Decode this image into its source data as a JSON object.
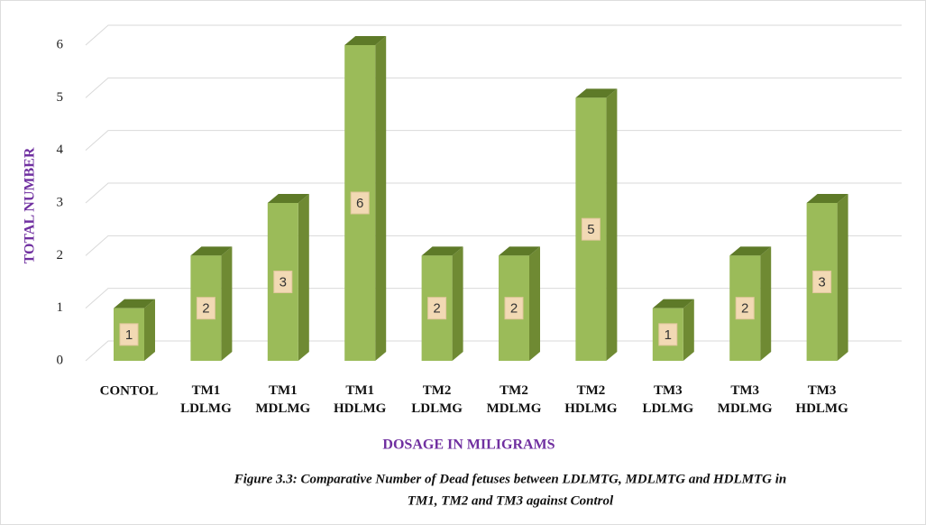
{
  "chart_data": {
    "type": "bar3d",
    "y_label": "TOTAL NUMBER",
    "x_label": "DOSAGE IN MILIGRAMS",
    "caption": [
      "Figure 3.3: Comparative Number of Dead fetuses between LDLMTG, MDLMTG and HDLMTG in",
      "TM1, TM2 and TM3 against Control"
    ],
    "categories": [
      "CONTOL",
      "TM1 LDLMG",
      "TM1 MDLMG",
      "TM1 HDLMG",
      "TM2 LDLMG",
      "TM2 MDLMG",
      "TM2 HDLMG",
      "TM3 LDLMG",
      "TM3 MDLMG",
      "TM3 HDLMG"
    ],
    "values": [
      1,
      2,
      3,
      6,
      2,
      2,
      5,
      1,
      2,
      3
    ],
    "color": "#9bbb59",
    "ylim": [
      0,
      6
    ],
    "yticks": [
      0,
      1,
      2,
      3,
      4,
      5,
      6
    ],
    "grid": true
  }
}
